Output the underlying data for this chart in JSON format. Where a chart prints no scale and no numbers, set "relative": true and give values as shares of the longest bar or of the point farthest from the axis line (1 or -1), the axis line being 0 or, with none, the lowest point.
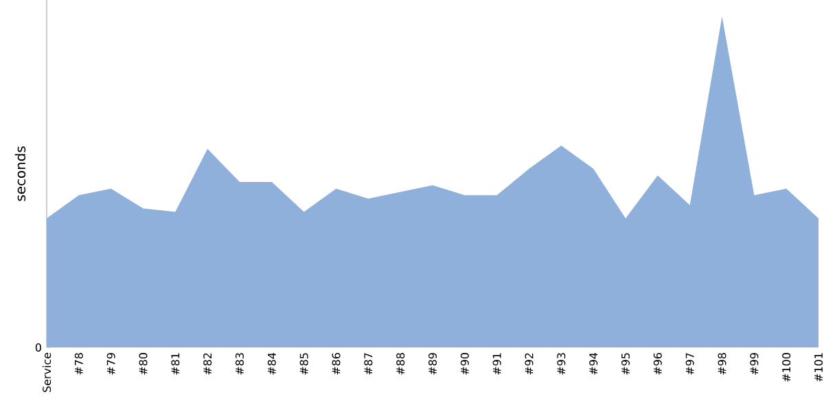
{
  "chart_data": {
    "type": "area",
    "relative": true,
    "ylabel": "seconds",
    "categories": [
      "Service",
      "#78",
      "#79",
      "#80",
      "#81",
      "#82",
      "#83",
      "#84",
      "#85",
      "#86",
      "#87",
      "#88",
      "#89",
      "#90",
      "#91",
      "#92",
      "#93",
      "#94",
      "#95",
      "#96",
      "#97",
      "#98",
      "#99",
      "#100",
      "#101"
    ],
    "annotations": [
      "0"
    ],
    "series": [
      {
        "color": "#8fb0da",
        "values": [
          0.39,
          0.46,
          0.48,
          0.42,
          0.41,
          0.6,
          0.5,
          0.5,
          0.41,
          0.48,
          0.45,
          0.47,
          0.49,
          0.46,
          0.46,
          0.54,
          0.61,
          0.54,
          0.39,
          0.52,
          0.43,
          1,
          0.46,
          0.48,
          0.39
        ]
      }
    ]
  }
}
